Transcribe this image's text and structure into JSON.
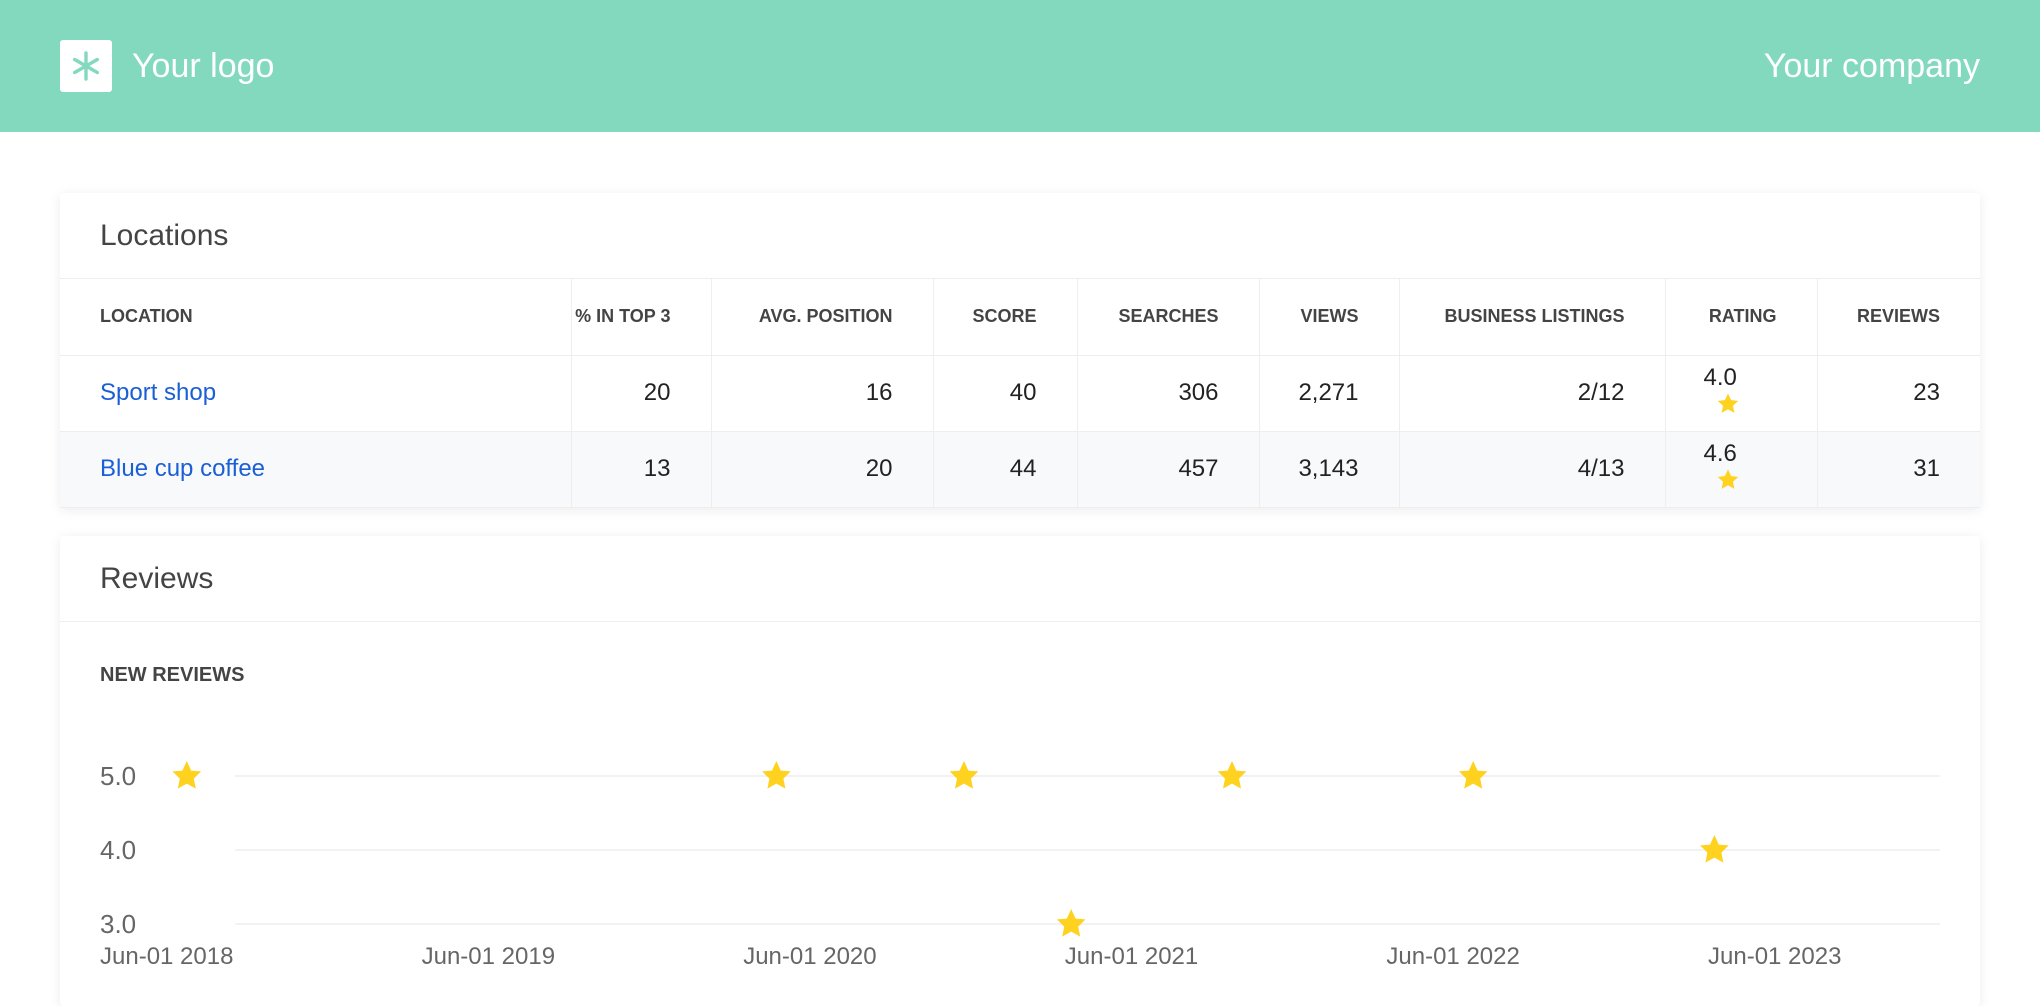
{
  "header": {
    "logo_text": "Your logo",
    "company": "Your company",
    "bg_color": "#82d9be"
  },
  "locations": {
    "title": "Locations",
    "columns": [
      "LOCATION",
      "% IN TOP 3",
      "AVG. POSITION",
      "SCORE",
      "SEARCHES",
      "VIEWS",
      "BUSINESS LISTINGS",
      "RATING",
      "REVIEWS"
    ],
    "rows": [
      {
        "location": "Sport shop",
        "top3": "20",
        "avg_position": "16",
        "score": "40",
        "searches": "306",
        "views": "2,271",
        "business_listings": "2/12",
        "rating": "4.0",
        "reviews": "23"
      },
      {
        "location": "Blue cup coffee",
        "top3": "13",
        "avg_position": "20",
        "score": "44",
        "searches": "457",
        "views": "3,143",
        "business_listings": "4/13",
        "rating": "4.6",
        "reviews": "31"
      }
    ],
    "link_color": "#1a5fd6",
    "star_color": "#ffd21f"
  },
  "reviews": {
    "title": "Reviews",
    "chart_label": "NEW REVIEWS"
  },
  "chart_data": {
    "type": "scatter",
    "marker": "star-icon",
    "ylabel_ticks": [
      "5.0",
      "4.0",
      "3.0"
    ],
    "ylim": [
      3.0,
      5.0
    ],
    "xlim": [
      "2018-06-01",
      "2023-06-01"
    ],
    "x_ticks": [
      "Jun-01 2018",
      "Jun-01 2019",
      "Jun-01 2020",
      "Jun-01 2021",
      "Jun-01 2022",
      "Jun-01 2023"
    ],
    "grid": true,
    "points": [
      {
        "x": "2018-07",
        "y": 5.0
      },
      {
        "x": "2020-05",
        "y": 5.0
      },
      {
        "x": "2020-12",
        "y": 5.0
      },
      {
        "x": "2021-04",
        "y": 3.0
      },
      {
        "x": "2021-10",
        "y": 5.0
      },
      {
        "x": "2022-07",
        "y": 5.0
      },
      {
        "x": "2023-04",
        "y": 4.0
      }
    ]
  }
}
